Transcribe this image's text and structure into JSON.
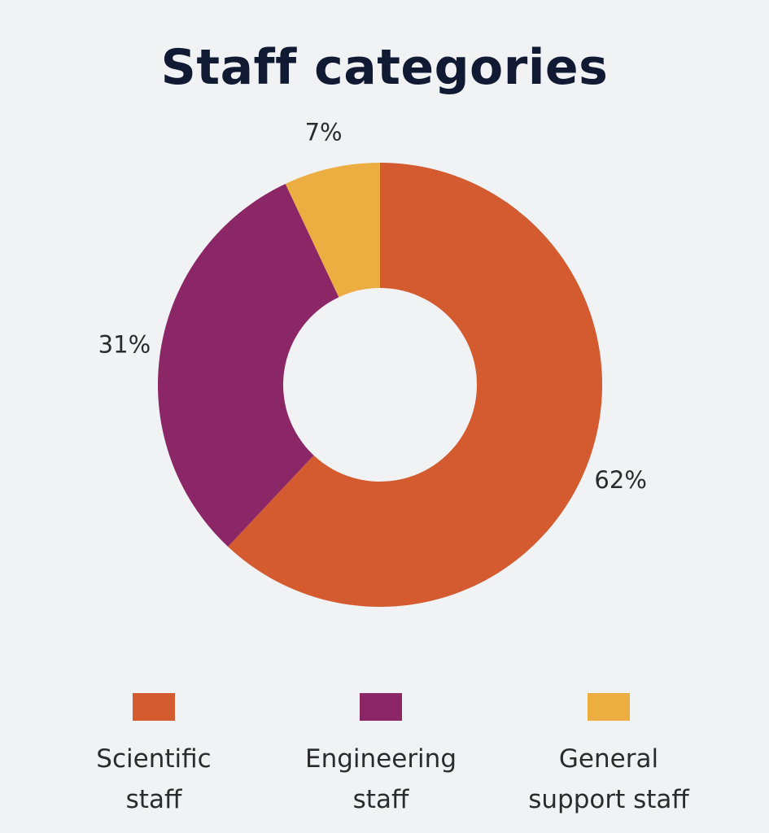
{
  "chart_data": {
    "type": "pie",
    "donut": true,
    "title": "Staff categories",
    "series": [
      {
        "name": "Scientific\nstaff",
        "value": 62,
        "label": "62%",
        "color": "#d45b2f"
      },
      {
        "name": "Engineering\nstaff",
        "value": 31,
        "label": "31%",
        "color": "#8b2667"
      },
      {
        "name": "General\nsupport staff",
        "value": 7,
        "label": "7%",
        "color": "#ecae41"
      }
    ],
    "legend_placement": "bottom"
  },
  "colors": {
    "background": "#f1f2f4",
    "title": "#111a33"
  }
}
